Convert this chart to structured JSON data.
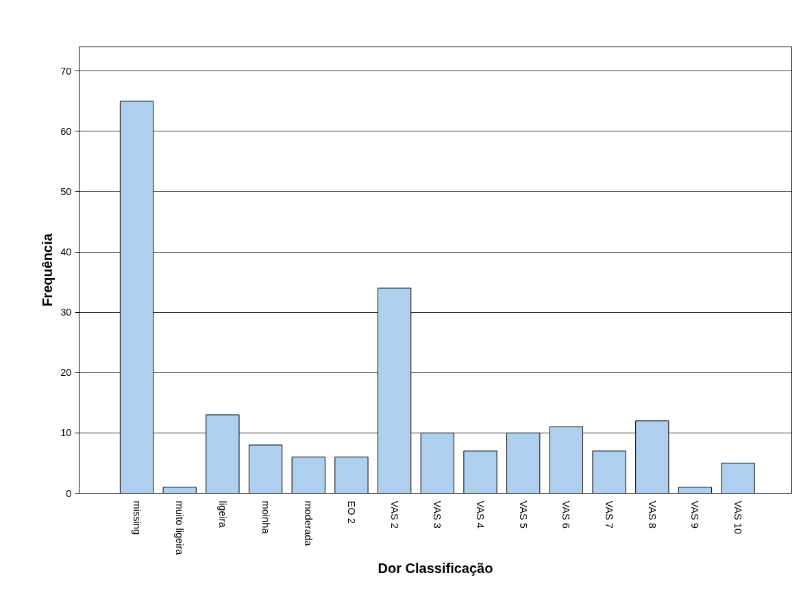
{
  "chart_data": {
    "type": "bar",
    "xlabel": "Dor Classificação",
    "ylabel": "Frequência",
    "categories": [
      "missing",
      "muito ligeira",
      "ligeira",
      "moinha",
      "moderada",
      "EO 2",
      "VAS 2",
      "VAS 3",
      "VAS 4",
      "VAS 5",
      "VAS 6",
      "VAS 7",
      "VAS 8",
      "VAS 9",
      "VAS 10"
    ],
    "values": [
      65,
      1,
      13,
      8,
      6,
      6,
      34,
      10,
      7,
      10,
      11,
      7,
      12,
      1,
      5
    ],
    "color": "#aecfee",
    "ylim": [
      0,
      74
    ],
    "yticks": [
      0,
      10,
      20,
      30,
      40,
      50,
      60,
      70
    ],
    "grid": "y"
  }
}
